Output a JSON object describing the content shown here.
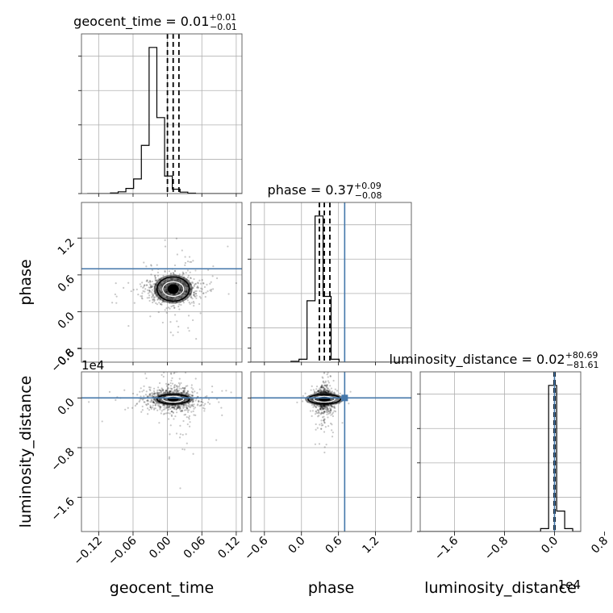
{
  "chart_data": {
    "type": "corner",
    "parameters": [
      "geocent_time",
      "phase",
      "luminosity_distance"
    ],
    "axis_labels": [
      "geocent_time",
      "phase",
      "luminosity_distance"
    ],
    "ranges": {
      "geocent_time": [
        -0.15,
        0.13
      ],
      "phase": [
        -0.82,
        1.78
      ],
      "luminosity_distance": [
        -21500,
        4200
      ]
    },
    "ticks": {
      "geocent_time": {
        "values": [
          -0.12,
          -0.06,
          0.0,
          0.06,
          0.12
        ],
        "labels": [
          "−0.12",
          "−0.06",
          "0.00",
          "0.06",
          "0.12"
        ]
      },
      "phase": {
        "values": [
          -0.6,
          0.0,
          0.6,
          1.2
        ],
        "labels": [
          "−0.6",
          "0.0",
          "0.6",
          "1.2"
        ]
      },
      "luminosity_distance": {
        "values": [
          -16000,
          -8000,
          0,
          8000
        ],
        "labels": [
          "−1.6",
          "−0.8",
          "0.0",
          "0.8"
        ]
      }
    },
    "offset_labels": {
      "luminosity_distance_y": "1e4",
      "luminosity_distance_x": "1e4"
    },
    "truths": {
      "geocent_time": null,
      "phase": 0.7,
      "luminosity_distance": 0
    },
    "truth_color": "#4477aa",
    "grid": true,
    "titles": [
      {
        "param": "geocent_time",
        "prefix": "geocent_time = ",
        "median": "0.01",
        "plus": "+0.01",
        "minus": "−0.01"
      },
      {
        "param": "phase",
        "prefix": "phase = ",
        "median": "0.37",
        "plus": "+0.09",
        "minus": "−0.08"
      },
      {
        "param": "luminosity_distance",
        "prefix": "luminosity_distance = ",
        "median": "0.02",
        "plus": "+80.69",
        "minus": "−81.61"
      }
    ],
    "histograms": {
      "geocent_time": {
        "bin_edges": [
          -0.14,
          -0.1265,
          -0.113,
          -0.0995,
          -0.086,
          -0.0725,
          -0.059,
          -0.0455,
          -0.032,
          -0.0185,
          -0.005,
          0.0085,
          0.022,
          0.0355,
          0.049,
          0.0625,
          0.076,
          0.0895,
          0.103,
          0.1165,
          0.13
        ],
        "counts": [
          0,
          0,
          0,
          0.004,
          0.012,
          0.035,
          0.1,
          0.33,
          1.0,
          0.52,
          0.12,
          0.03,
          0.01,
          0.003,
          0,
          0,
          0,
          0,
          0,
          0
        ],
        "quantiles": [
          0.0,
          0.01,
          0.02
        ]
      },
      "phase": {
        "bin_edges": [
          -0.82,
          -0.69,
          -0.56,
          -0.43,
          -0.3,
          -0.17,
          -0.04,
          0.09,
          0.22,
          0.35,
          0.48,
          0.61,
          0.74,
          0.87,
          1.0,
          1.13,
          1.26,
          1.39,
          1.52,
          1.65,
          1.78
        ],
        "counts": [
          0,
          0,
          0,
          0,
          0,
          0.006,
          0.02,
          0.42,
          1.0,
          0.45,
          0.02,
          0,
          0,
          0,
          0,
          0,
          0,
          0,
          0,
          0
        ],
        "quantiles": [
          0.29,
          0.37,
          0.46
        ]
      },
      "luminosity_distance": {
        "bin_edges": [
          -21500,
          -20215,
          -18930,
          -17645,
          -16360,
          -15075,
          -13790,
          -12505,
          -11220,
          -9935,
          -8650,
          -7365,
          -6080,
          -4795,
          -3510,
          -2225,
          -940,
          345,
          1630,
          2915,
          4200
        ],
        "counts": [
          0,
          0,
          0,
          0,
          0,
          0,
          0,
          0,
          0,
          0,
          0,
          0,
          0,
          0,
          0,
          0.02,
          1.0,
          0.14,
          0.02,
          0
        ],
        "quantiles": [
          -81.61,
          0.02,
          80.71
        ]
      }
    },
    "scatter_centers": {
      "phase_vs_geocent_time": [
        0.01,
        0.37
      ],
      "luminosity_distance_vs_geocent_time": [
        0.01,
        -200
      ],
      "luminosity_distance_vs_phase": [
        0.37,
        -200
      ]
    }
  }
}
